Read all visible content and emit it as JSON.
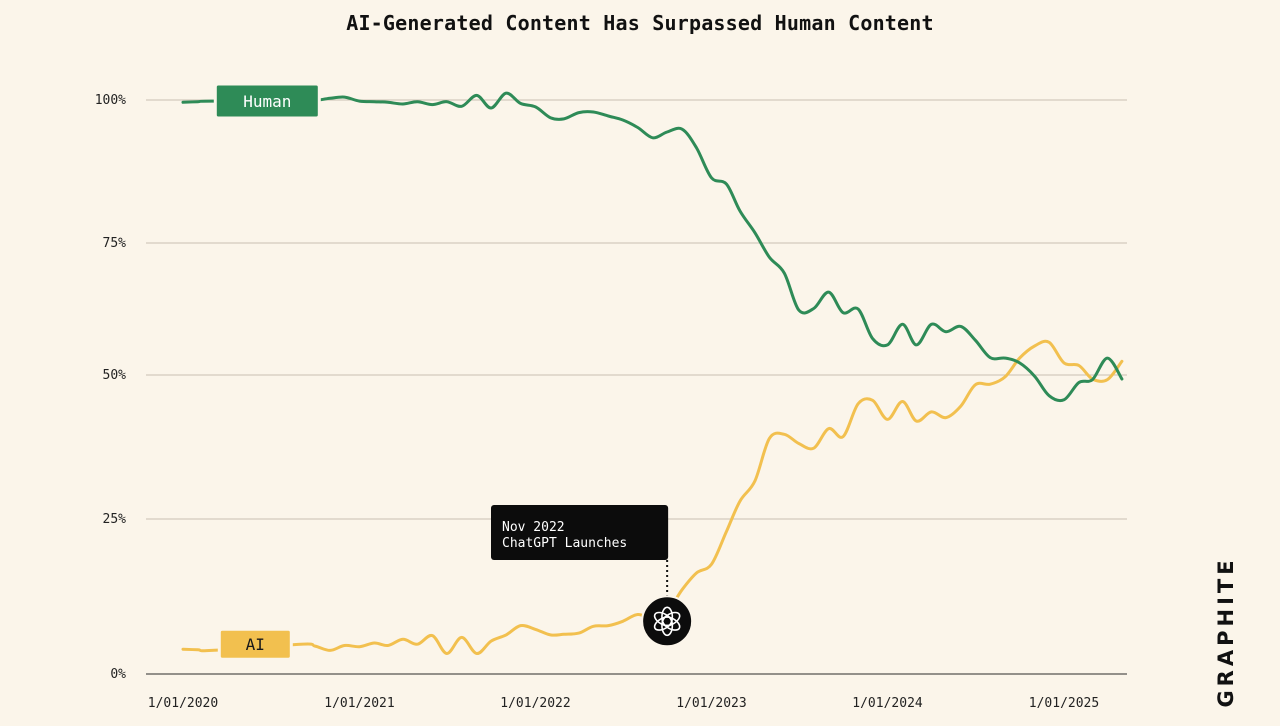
{
  "brand": "GRAPHITE",
  "colors": {
    "human": "#2e8b57",
    "ai": "#f2c04f",
    "grid": "#c9c0b1",
    "background": "#fbf5ea",
    "annotation_bg": "#0c0c0c"
  },
  "chart_data": {
    "type": "line",
    "title": "AI-Generated Content Has Surpassed Human Content",
    "xlabel": "",
    "ylabel": "",
    "xlim": [
      "2020-01-01",
      "2025-06-01"
    ],
    "ylim": [
      0,
      100
    ],
    "y_ticks": [
      {
        "value": 0,
        "label": "0%"
      },
      {
        "value": 25,
        "label": "25%"
      },
      {
        "value": 50,
        "label": "50%"
      },
      {
        "value": 75,
        "label": "75%"
      },
      {
        "value": 100,
        "label": "100%"
      }
    ],
    "x_ticks": [
      {
        "value": "2020-01-01",
        "label": "1/01/2020"
      },
      {
        "value": "2021-01-01",
        "label": "1/01/2021"
      },
      {
        "value": "2022-01-01",
        "label": "1/01/2022"
      },
      {
        "value": "2023-01-01",
        "label": "1/01/2023"
      },
      {
        "value": "2024-01-01",
        "label": "1/01/2024"
      },
      {
        "value": "2025-01-01",
        "label": "1/01/2025"
      }
    ],
    "grid": true,
    "legend": "inline-labels",
    "series": [
      {
        "name": "Human",
        "color": "#2e8b57",
        "points": [
          [
            "2020-01-01",
            99.6
          ],
          [
            "2020-02-01",
            99.7
          ],
          [
            "2020-03-01",
            99.8
          ],
          [
            "2020-09-01",
            99.7
          ],
          [
            "2020-10-01",
            99.9
          ],
          [
            "2020-11-01",
            100.3
          ],
          [
            "2020-12-01",
            100.5
          ],
          [
            "2021-01-01",
            99.8
          ],
          [
            "2021-02-01",
            99.7
          ],
          [
            "2021-03-01",
            99.6
          ],
          [
            "2021-04-01",
            99.3
          ],
          [
            "2021-05-01",
            99.7
          ],
          [
            "2021-06-01",
            99.2
          ],
          [
            "2021-07-01",
            99.7
          ],
          [
            "2021-08-01",
            98.9
          ],
          [
            "2021-09-01",
            100.8
          ],
          [
            "2021-10-01",
            98.6
          ],
          [
            "2021-11-01",
            101.2
          ],
          [
            "2021-12-01",
            99.4
          ],
          [
            "2022-01-01",
            98.8
          ],
          [
            "2022-02-01",
            96.9
          ],
          [
            "2022-03-01",
            96.7
          ],
          [
            "2022-04-01",
            97.8
          ],
          [
            "2022-05-01",
            97.9
          ],
          [
            "2022-06-01",
            97.2
          ],
          [
            "2022-07-01",
            96.5
          ],
          [
            "2022-08-01",
            95.2
          ],
          [
            "2022-09-01",
            93.4
          ],
          [
            "2022-10-01",
            94.4
          ],
          [
            "2022-11-01",
            94.9
          ],
          [
            "2022-12-01",
            91.6
          ],
          [
            "2023-01-01",
            86.4
          ],
          [
            "2023-02-01",
            85.3
          ],
          [
            "2023-03-01",
            80.6
          ],
          [
            "2023-04-01",
            76.8
          ],
          [
            "2023-05-01",
            72.3
          ],
          [
            "2023-06-01",
            69.3
          ],
          [
            "2023-07-01",
            62.3
          ],
          [
            "2023-08-01",
            62.6
          ],
          [
            "2023-09-01",
            65.7
          ],
          [
            "2023-10-01",
            61.8
          ],
          [
            "2023-11-01",
            62.5
          ],
          [
            "2023-12-01",
            56.9
          ],
          [
            "2024-01-01",
            55.7
          ],
          [
            "2024-02-01",
            59.6
          ],
          [
            "2024-03-01",
            55.7
          ],
          [
            "2024-04-01",
            59.6
          ],
          [
            "2024-05-01",
            58.2
          ],
          [
            "2024-06-01",
            59.2
          ],
          [
            "2024-07-01",
            56.6
          ],
          [
            "2024-08-01",
            53.3
          ],
          [
            "2024-09-01",
            53.2
          ],
          [
            "2024-10-01",
            52.3
          ],
          [
            "2024-11-01",
            49.8
          ],
          [
            "2024-12-01",
            46.4
          ],
          [
            "2025-01-01",
            45.7
          ],
          [
            "2025-02-01",
            48.7
          ],
          [
            "2025-03-01",
            49.2
          ],
          [
            "2025-04-01",
            53.2
          ],
          [
            "2025-05-01",
            49.3
          ]
        ]
      },
      {
        "name": "AI",
        "color": "#f2c04f",
        "points": [
          [
            "2020-01-01",
            4.0
          ],
          [
            "2020-02-01",
            3.9
          ],
          [
            "2020-03-01",
            3.8
          ],
          [
            "2020-09-01",
            4.8
          ],
          [
            "2020-10-01",
            4.5
          ],
          [
            "2020-11-01",
            3.8
          ],
          [
            "2020-12-01",
            4.6
          ],
          [
            "2021-01-01",
            4.4
          ],
          [
            "2021-02-01",
            5.0
          ],
          [
            "2021-03-01",
            4.6
          ],
          [
            "2021-04-01",
            5.6
          ],
          [
            "2021-05-01",
            4.8
          ],
          [
            "2021-06-01",
            6.2
          ],
          [
            "2021-07-01",
            3.3
          ],
          [
            "2021-08-01",
            5.9
          ],
          [
            "2021-09-01",
            3.3
          ],
          [
            "2021-10-01",
            5.3
          ],
          [
            "2021-11-01",
            6.3
          ],
          [
            "2021-12-01",
            7.8
          ],
          [
            "2022-01-01",
            7.2
          ],
          [
            "2022-02-01",
            6.3
          ],
          [
            "2022-03-01",
            6.4
          ],
          [
            "2022-04-01",
            6.6
          ],
          [
            "2022-05-01",
            7.7
          ],
          [
            "2022-06-01",
            7.8
          ],
          [
            "2022-07-01",
            8.5
          ],
          [
            "2022-08-01",
            9.6
          ],
          [
            "2022-09-01",
            9.0
          ],
          [
            "2022-10-01",
            10.0
          ],
          [
            "2022-11-01",
            13.6
          ],
          [
            "2022-12-01",
            16.3
          ],
          [
            "2023-01-01",
            17.7
          ],
          [
            "2023-02-01",
            23.0
          ],
          [
            "2023-03-01",
            28.1
          ],
          [
            "2023-04-01",
            31.6
          ],
          [
            "2023-05-01",
            39.0
          ],
          [
            "2023-06-01",
            39.7
          ],
          [
            "2023-07-01",
            38.1
          ],
          [
            "2023-08-01",
            37.3
          ],
          [
            "2023-09-01",
            40.7
          ],
          [
            "2023-10-01",
            39.3
          ],
          [
            "2023-11-01",
            45.0
          ],
          [
            "2023-12-01",
            45.6
          ],
          [
            "2024-01-01",
            42.3
          ],
          [
            "2024-02-01",
            45.4
          ],
          [
            "2024-03-01",
            42.0
          ],
          [
            "2024-04-01",
            43.6
          ],
          [
            "2024-05-01",
            42.6
          ],
          [
            "2024-06-01",
            44.6
          ],
          [
            "2024-07-01",
            48.3
          ],
          [
            "2024-08-01",
            48.4
          ],
          [
            "2024-09-01",
            49.7
          ],
          [
            "2024-10-01",
            53.2
          ],
          [
            "2024-11-01",
            55.5
          ],
          [
            "2024-12-01",
            56.2
          ],
          [
            "2025-01-01",
            52.3
          ],
          [
            "2025-02-01",
            51.8
          ],
          [
            "2025-03-01",
            49.3
          ],
          [
            "2025-04-01",
            49.2
          ],
          [
            "2025-05-01",
            52.6
          ]
        ]
      }
    ],
    "series_labels": [
      {
        "series": "Human",
        "text": "Human",
        "anchor_x": "2020-06-01",
        "anchor_y": 100
      },
      {
        "series": "AI",
        "text": "AI",
        "anchor_x": "2020-06-01",
        "anchor_y": 4
      }
    ],
    "annotations": [
      {
        "x": "2022-10-01",
        "y": 8.5,
        "lines": [
          "Nov 2022",
          "ChatGPT Launches"
        ],
        "marker": "openai-logo-icon"
      }
    ]
  }
}
